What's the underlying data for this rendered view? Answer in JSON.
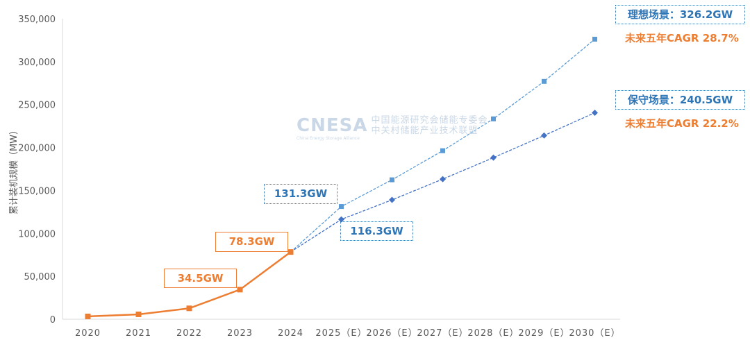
{
  "chart_data": {
    "type": "line",
    "ylabel": "累计装机规模（MW）",
    "xlabel": "",
    "ylim": [
      0,
      350000
    ],
    "yticks": [
      0,
      50000,
      100000,
      150000,
      200000,
      250000,
      300000,
      350000
    ],
    "ytick_labels": [
      "0",
      "50,000",
      "100,000",
      "150,000",
      "200,000",
      "250,000",
      "300,000",
      "350,000"
    ],
    "categories": [
      "2020",
      "2021",
      "2022",
      "2023",
      "2024",
      "2025（E）",
      "2026（E）",
      "2027（E）",
      "2028（E）",
      "2029（E）",
      "2030（E）"
    ],
    "grid": false,
    "series": [
      {
        "key": "historical",
        "values": [
          3300,
          5700,
          12700,
          34500,
          78300,
          null,
          null,
          null,
          null,
          null,
          null
        ],
        "color": "#ED7D31",
        "style": "solid",
        "marker": "square"
      },
      {
        "key": "ideal",
        "values": [
          null,
          null,
          null,
          null,
          78300,
          131300,
          162400,
          196300,
          233400,
          277000,
          326200
        ],
        "color": "#5B9BD5",
        "style": "dashed",
        "marker": "square"
      },
      {
        "key": "conservative",
        "values": [
          null,
          null,
          null,
          null,
          78300,
          116300,
          139000,
          163200,
          188200,
          214000,
          240500
        ],
        "color": "#4472C4",
        "style": "dashed",
        "marker": "diamond"
      }
    ],
    "annotations": {
      "a2023": "34.5GW",
      "a2024": "78.3GW",
      "ideal2025": "131.3GW",
      "cons2025": "116.3GW",
      "ideal2030": "理想场景：326.2GW",
      "ideal_cagr": "未来五年CAGR 28.7%",
      "cons2030": "保守场景：240.5GW",
      "cons_cagr": "未来五年CAGR 22.2%"
    }
  },
  "watermark": {
    "logo": "CNESA",
    "line1": "中国能源研究会储能专委会",
    "line2": "中关村储能产业技术联盟",
    "sub": "China Energy Storage Alliance"
  }
}
